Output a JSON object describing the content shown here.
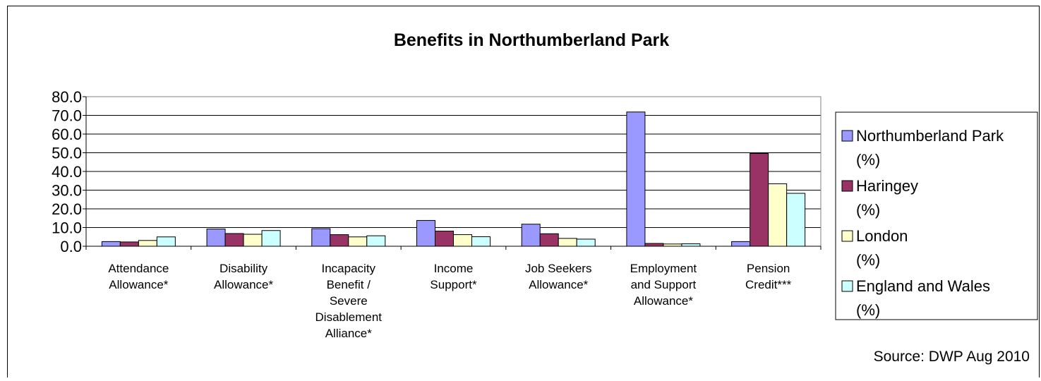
{
  "chart_data": {
    "type": "bar",
    "title": "Benefits in Northumberland Park",
    "source": "Source: DWP Aug 2010",
    "categories": [
      [
        "Attendance",
        "Allowance*"
      ],
      [
        "Disability",
        "Allowance*"
      ],
      [
        "Incapacity",
        "Benefit /",
        "Severe",
        "Disablement",
        "Alliance*"
      ],
      [
        "Income",
        "Support*"
      ],
      [
        "Job Seekers",
        "Allowance*"
      ],
      [
        "Employment",
        "and Support",
        "Allowance*"
      ],
      [
        "Pension",
        "Credit***"
      ]
    ],
    "series": [
      {
        "name": [
          "Northumberland Park",
          "(%)"
        ],
        "color": "#9999FF",
        "values": [
          2.5,
          9.2,
          9.4,
          13.8,
          11.8,
          71.8,
          2.5
        ]
      },
      {
        "name": [
          "Haringey",
          "(%)"
        ],
        "color": "#993366",
        "values": [
          2.3,
          6.8,
          6.2,
          8.1,
          6.7,
          1.5,
          49.6
        ]
      },
      {
        "name": [
          "London",
          "(%)"
        ],
        "color": "#FFFFCC",
        "values": [
          3.1,
          6.4,
          5.0,
          6.2,
          4.2,
          1.2,
          33.4
        ]
      },
      {
        "name": [
          "England and Wales",
          "(%)"
        ],
        "color": "#CCFFFF",
        "values": [
          5.0,
          8.4,
          5.6,
          5.1,
          3.8,
          1.3,
          28.3
        ]
      }
    ],
    "ylim": [
      0,
      80
    ],
    "yticks": [
      "0.0",
      "10.0",
      "20.0",
      "30.0",
      "40.0",
      "50.0",
      "60.0",
      "70.0",
      "80.0"
    ],
    "grid": true,
    "legend_position": "right"
  }
}
